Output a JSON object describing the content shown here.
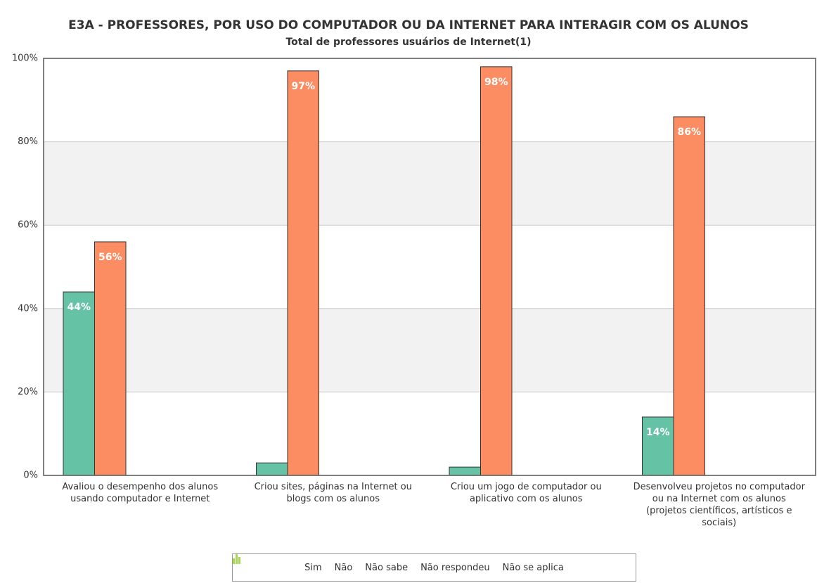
{
  "chart_data": {
    "type": "bar",
    "title": "E3A - PROFESSORES, POR USO DO COMPUTADOR OU DA INTERNET PARA INTERAGIR COM OS ALUNOS",
    "subtitle": "Total de professores usuários de Internet(1)",
    "categories": [
      "Avaliou o desempenho dos alunos usando computador e Internet",
      "Criou sites, páginas na Internet ou blogs com os alunos",
      "Criou um jogo de computador ou aplicativo com os alunos",
      "Desenvolveu projetos no computador ou na Internet com os alunos (projetos científicos, artísticos e sociais)"
    ],
    "series": [
      {
        "name": "Sim",
        "color": "#66c2a5",
        "values": [
          44,
          3,
          2,
          14
        ],
        "value_labels": [
          "44%",
          null,
          null,
          "14%"
        ]
      },
      {
        "name": "Não",
        "color": "#fc8d62",
        "values": [
          56,
          97,
          98,
          86
        ],
        "value_labels": [
          "56%",
          "97%",
          "98%",
          "86%"
        ]
      },
      {
        "name": "Não sabe",
        "color": "#8da0cb",
        "values": [
          null,
          null,
          null,
          null
        ]
      },
      {
        "name": "Não respondeu",
        "color": "#e78ac3",
        "values": [
          null,
          null,
          null,
          null
        ]
      },
      {
        "name": "Não se aplica",
        "color": "#a6d854",
        "values": [
          null,
          null,
          null,
          null
        ]
      }
    ],
    "ylim": [
      0,
      100
    ],
    "yticks": [
      {
        "value": 0,
        "label": "0%"
      },
      {
        "value": 20,
        "label": "20%"
      },
      {
        "value": 40,
        "label": "40%"
      },
      {
        "value": 60,
        "label": "60%"
      },
      {
        "value": 80,
        "label": "80%"
      },
      {
        "value": 100,
        "label": "100%"
      }
    ],
    "grid": true
  }
}
